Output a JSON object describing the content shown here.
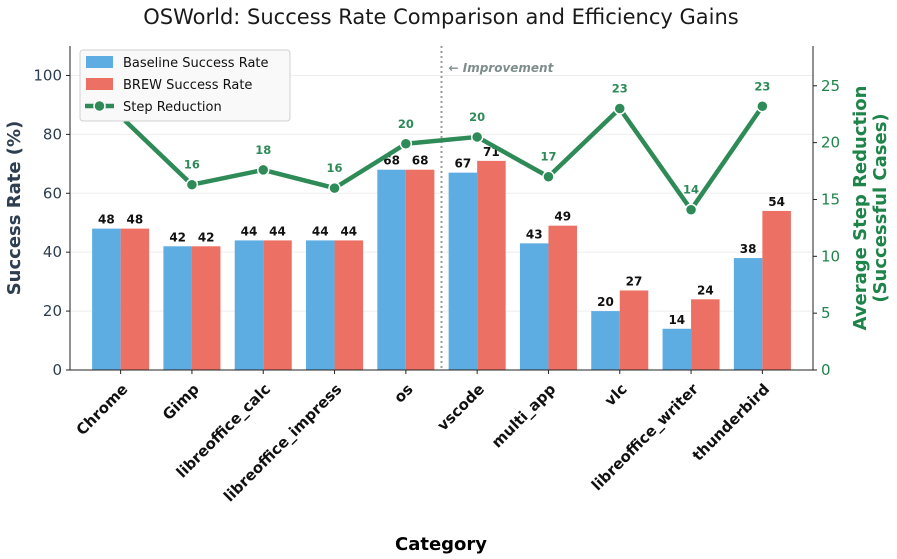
{
  "chart_data": {
    "type": "bar",
    "title": "OSWorld: Success Rate Comparison and Efficiency Gains",
    "xlabel": "Category",
    "ylabel": "Success Rate (%)",
    "y2label_line1": "Average Step Reduction",
    "y2label_line2": "(Successful Cases)",
    "ylim": [
      0,
      110
    ],
    "y2lim": [
      0,
      28.5
    ],
    "yticks": [
      0,
      20,
      40,
      60,
      80,
      100
    ],
    "y2ticks": [
      0,
      5,
      10,
      15,
      20,
      25
    ],
    "categories": [
      "Chrome",
      "Gimp",
      "libreoffice_calc",
      "libreoffice_impress",
      "os",
      "vscode",
      "multi_app",
      "vlc",
      "libreoffice_writer",
      "thunderbird"
    ],
    "series": [
      {
        "name": "Baseline Success Rate",
        "axis": "left",
        "kind": "bar",
        "values": [
          48,
          42,
          44,
          44,
          68,
          67,
          43,
          20,
          14,
          38
        ],
        "labels": [
          "48",
          "42",
          "44",
          "44",
          "68",
          "67",
          "43",
          "20",
          "14",
          "38"
        ]
      },
      {
        "name": "BREW Success Rate",
        "axis": "left",
        "kind": "bar",
        "values": [
          48,
          42,
          44,
          44,
          68,
          71,
          49,
          27,
          24,
          54
        ],
        "labels": [
          "48",
          "42",
          "44",
          "44",
          "68",
          "71",
          "49",
          "27",
          "24",
          "54"
        ]
      },
      {
        "name": "Step Reduction",
        "axis": "right",
        "kind": "line",
        "values": [
          22.3,
          16.3,
          17.6,
          16.0,
          19.9,
          20.5,
          17.0,
          23.0,
          14.1,
          23.2
        ],
        "labels": [
          "",
          "16",
          "18",
          "16",
          "20",
          "20",
          "17",
          "23",
          "14",
          "23"
        ]
      }
    ],
    "divider_after_index": 4,
    "annotation": "← Improvement",
    "legend_position": "top-left",
    "grid": "horizontal-faint",
    "colors": {
      "baseline": "#5dade2",
      "brew": "#ec7063",
      "step": "#2e8b57",
      "left_axis": "#2c3e50",
      "right_axis": "#1e8449",
      "divider": "#999999",
      "annotation": "#7f8c8d"
    }
  }
}
